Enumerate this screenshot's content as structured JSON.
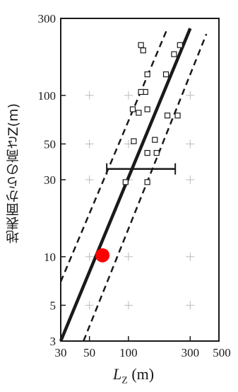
{
  "chart_data": {
    "type": "scatter",
    "x_scale": "log",
    "y_scale": "log",
    "xlim": [
      30,
      500
    ],
    "ylim": [
      3,
      300
    ],
    "x_ticks": [
      {
        "value": 30,
        "label": "30"
      },
      {
        "value": 50,
        "label": "50"
      },
      {
        "value": 100,
        "label": "100"
      },
      {
        "value": 300,
        "label": "300"
      },
      {
        "value": 500,
        "label": "500"
      }
    ],
    "y_ticks": [
      {
        "value": 3,
        "label": "3"
      },
      {
        "value": 5,
        "label": "5"
      },
      {
        "value": 10,
        "label": "10"
      },
      {
        "value": 30,
        "label": "30"
      },
      {
        "value": 50,
        "label": "50"
      },
      {
        "value": 100,
        "label": "100"
      },
      {
        "value": 300,
        "label": "300"
      }
    ],
    "grid": "cross markers",
    "ylabel": "地表面からの高さZ(m)",
    "xlabel": {
      "symbol": "L",
      "subscript": "Z",
      "unit": "(m)"
    },
    "fit_line": {
      "x": [
        30,
        300
      ],
      "y": [
        3,
        260
      ]
    },
    "upper_bound_line": {
      "x": [
        30,
        200
      ],
      "y": [
        7,
        260
      ]
    },
    "lower_bound_line": {
      "x": [
        45,
        400
      ],
      "y": [
        3,
        240
      ]
    },
    "error_bar": {
      "y": 35,
      "x_min": 68,
      "x_max": 230
    },
    "points": [
      {
        "x": 125,
        "y": 205
      },
      {
        "x": 130,
        "y": 190
      },
      {
        "x": 140,
        "y": 135
      },
      {
        "x": 195,
        "y": 135
      },
      {
        "x": 225,
        "y": 180
      },
      {
        "x": 250,
        "y": 205
      },
      {
        "x": 135,
        "y": 105
      },
      {
        "x": 125,
        "y": 105
      },
      {
        "x": 108,
        "y": 82
      },
      {
        "x": 140,
        "y": 82
      },
      {
        "x": 120,
        "y": 78
      },
      {
        "x": 200,
        "y": 75
      },
      {
        "x": 240,
        "y": 75
      },
      {
        "x": 110,
        "y": 52
      },
      {
        "x": 160,
        "y": 53
      },
      {
        "x": 140,
        "y": 44
      },
      {
        "x": 165,
        "y": 44
      },
      {
        "x": 95,
        "y": 29
      },
      {
        "x": 140,
        "y": 29
      }
    ],
    "highlight_point": {
      "x": 63,
      "y": 10.2,
      "color": "#ff0000"
    }
  },
  "colors": {
    "ink": "#1a1a1a",
    "grid": "#bbbbbb",
    "highlight": "#ff0000"
  }
}
